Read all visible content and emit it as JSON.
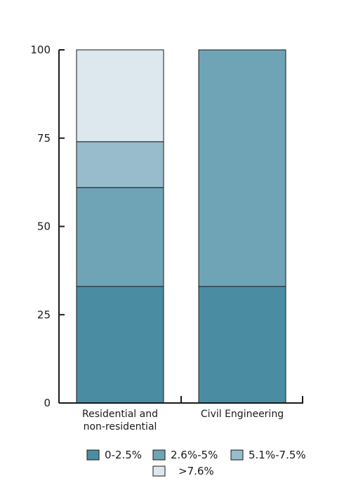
{
  "chart_data": {
    "type": "bar",
    "stacked": true,
    "categories": [
      [
        "Residential and",
        "non-residential"
      ],
      [
        "Civil Engineering"
      ]
    ],
    "series": [
      {
        "name": "0-2.5%",
        "color": "#4a8da2",
        "values": [
          33,
          33
        ]
      },
      {
        "name": "2.6%-5%",
        "color": "#6fa4b6",
        "values": [
          28,
          67
        ]
      },
      {
        "name": "5.1%-7.5%",
        "color": "#98bccb",
        "values": [
          13,
          0
        ]
      },
      {
        "name": ">7.6%",
        "color": "#dce8ee",
        "values": [
          26,
          0
        ]
      }
    ],
    "ylim": [
      0,
      100
    ],
    "yticks": [
      "0",
      "25",
      "50",
      "75",
      "100"
    ],
    "grid": false,
    "legend_position": "bottom"
  }
}
